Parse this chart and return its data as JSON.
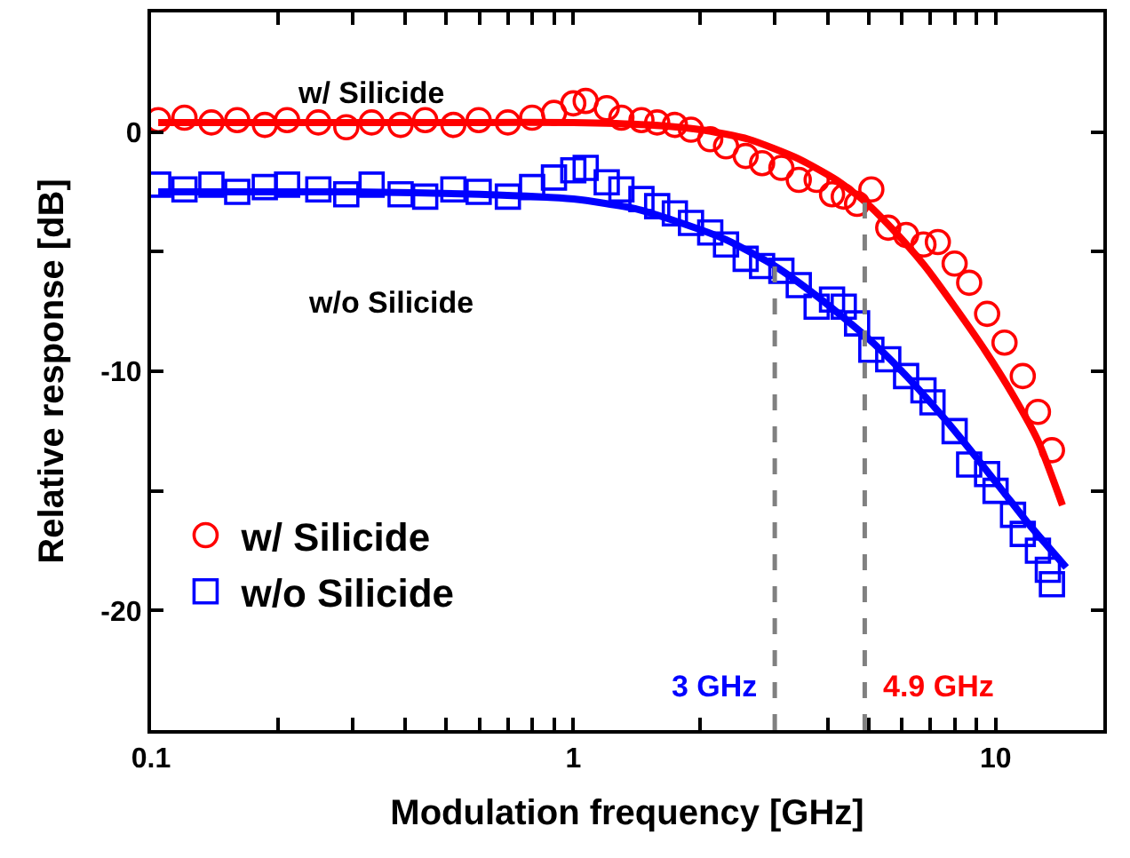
{
  "chart_data": {
    "type": "scatter",
    "xlabel": "Modulation frequency [GHz]",
    "ylabel": "Relative response [dB]",
    "log": "x",
    "xlim": [
      0.1,
      18
    ],
    "ylim": [
      -25,
      5
    ],
    "xticks": [
      0.1,
      {
        "value": 0.2,
        "label": null
      },
      {
        "value": 0.3,
        "label": null
      },
      {
        "value": 0.4,
        "label": null
      },
      {
        "value": 0.5,
        "label": null
      },
      {
        "value": 0.6,
        "label": null
      },
      {
        "value": 0.7,
        "label": null
      },
      {
        "value": 0.8,
        "label": null
      },
      {
        "value": 0.9,
        "label": null
      },
      1,
      {
        "value": 2,
        "label": null
      },
      {
        "value": 3,
        "label": null
      },
      {
        "value": 4,
        "label": null
      },
      {
        "value": 5,
        "label": null
      },
      {
        "value": 6,
        "label": null
      },
      {
        "value": 7,
        "label": null
      },
      {
        "value": 8,
        "label": null
      },
      {
        "value": 9,
        "label": null
      },
      10
    ],
    "yticks": [
      -20,
      {
        "value": -15,
        "label": null
      },
      -10,
      {
        "value": -5,
        "label": null
      },
      0
    ],
    "legend": "bottom left",
    "series": [
      {
        "name": "w/ Silicide",
        "color": "#ff0000",
        "marker": "circle",
        "x": [
          0.104,
          0.12,
          0.139,
          0.16,
          0.186,
          0.21,
          0.249,
          0.29,
          0.333,
          0.39,
          0.446,
          0.52,
          0.597,
          0.7,
          0.799,
          0.9,
          1.0,
          1.07,
          1.2,
          1.3,
          1.45,
          1.58,
          1.74,
          1.9,
          2.11,
          2.3,
          2.56,
          2.8,
          3.11,
          3.42,
          3.77,
          4.1,
          4.37,
          4.7,
          5.08,
          5.57,
          6.14,
          6.75,
          7.3,
          8.0,
          8.66,
          9.55,
          10.5,
          11.6,
          12.6,
          13.6
        ],
        "values": [
          0.5,
          0.6,
          0.4,
          0.5,
          0.3,
          0.5,
          0.4,
          0.2,
          0.4,
          0.3,
          0.5,
          0.3,
          0.5,
          0.4,
          0.6,
          0.8,
          1.2,
          1.3,
          1.0,
          0.6,
          0.5,
          0.4,
          0.3,
          0.1,
          -0.3,
          -0.6,
          -1.0,
          -1.3,
          -1.5,
          -2.0,
          -2.0,
          -2.6,
          -2.7,
          -3.0,
          -2.4,
          -4.0,
          -4.3,
          -4.7,
          -4.6,
          -5.5,
          -6.3,
          -7.6,
          -8.8,
          -10.2,
          -11.7,
          -13.3
        ]
      },
      {
        "name": "w/o Silicide",
        "color": "#0000ff",
        "marker": "square",
        "x": [
          0.104,
          0.12,
          0.139,
          0.16,
          0.186,
          0.21,
          0.249,
          0.29,
          0.333,
          0.39,
          0.446,
          0.52,
          0.597,
          0.7,
          0.799,
          0.9,
          1.0,
          1.07,
          1.2,
          1.3,
          1.45,
          1.58,
          1.74,
          1.9,
          2.11,
          2.3,
          2.56,
          2.8,
          3.11,
          3.42,
          3.77,
          4.1,
          4.37,
          4.7,
          5.08,
          5.57,
          6.14,
          6.75,
          7.09,
          8.0,
          8.66,
          9.55,
          10.0,
          11.0,
          11.6,
          12.6,
          13.3,
          13.6
        ],
        "values": [
          -2.2,
          -2.4,
          -2.2,
          -2.5,
          -2.3,
          -2.2,
          -2.4,
          -2.6,
          -2.2,
          -2.6,
          -2.7,
          -2.4,
          -2.5,
          -2.7,
          -2.3,
          -1.9,
          -1.6,
          -1.5,
          -2.1,
          -2.4,
          -2.8,
          -3.1,
          -3.4,
          -3.8,
          -4.2,
          -4.7,
          -5.3,
          -5.6,
          -5.8,
          -6.4,
          -7.3,
          -7.0,
          -7.3,
          -8.0,
          -9.1,
          -9.5,
          -10.2,
          -10.8,
          -11.3,
          -12.5,
          -13.9,
          -14.3,
          -15.0,
          -16.0,
          -16.8,
          -17.5,
          -18.3,
          -18.9
        ]
      },
      {
        "type": "line",
        "color": "#0000ff",
        "x": [
          0.104,
          0.3,
          0.6,
          1.0,
          1.4,
          1.8,
          2.3,
          3.0,
          3.8,
          4.9,
          6.0,
          7.5,
          9.0,
          10.5,
          12.0,
          14.7
        ],
        "values": [
          -2.5,
          -2.5,
          -2.6,
          -2.8,
          -3.2,
          -3.8,
          -4.5,
          -5.6,
          -6.9,
          -8.5,
          -10.0,
          -11.9,
          -13.6,
          -15.1,
          -16.4,
          -18.2
        ]
      },
      {
        "type": "line",
        "color": "#ff0000",
        "x": [
          0.104,
          0.3,
          0.6,
          1.0,
          1.5,
          2.0,
          2.6,
          3.4,
          4.2,
          4.9,
          5.8,
          6.8,
          8.0,
          9.5,
          11.0,
          12.6,
          14.4
        ],
        "values": [
          0.4,
          0.4,
          0.4,
          0.4,
          0.3,
          0.1,
          -0.3,
          -1.1,
          -2.0,
          -2.9,
          -4.2,
          -5.6,
          -7.3,
          -9.2,
          -11.0,
          -12.9,
          -15.6
        ]
      }
    ],
    "ref_lines": [
      {
        "axis": "x",
        "value": 3,
        "label": "3 GHz",
        "color": "#808080",
        "line_style": "dashed"
      },
      {
        "axis": "x",
        "value": 4.9,
        "label": "4.9 GHz",
        "color": "#808080",
        "line_style": "dashed"
      }
    ],
    "annotations": [
      "w/ Silicide",
      "w/o Silicide"
    ]
  }
}
